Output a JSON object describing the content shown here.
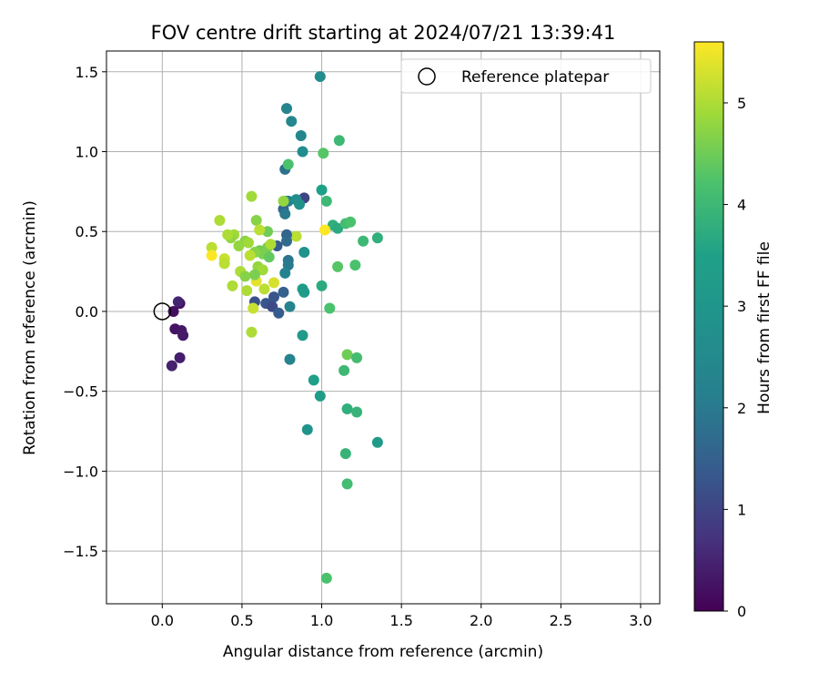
{
  "chart_data": {
    "type": "scatter",
    "title": "FOV centre drift starting at 2024/07/21 13:39:41",
    "xlabel": "Angular distance from reference (arcmin)",
    "ylabel": "Rotation from reference (arcmin)",
    "xlim": [
      -0.35,
      3.12
    ],
    "ylim": [
      -1.83,
      1.63
    ],
    "xticks": [
      0.0,
      0.5,
      1.0,
      1.5,
      2.0,
      2.5,
      3.0
    ],
    "xtick_labels": [
      "0.0",
      "0.5",
      "1.0",
      "1.5",
      "2.0",
      "2.5",
      "3.0"
    ],
    "yticks": [
      1.5,
      1.0,
      0.5,
      0.0,
      -0.5,
      -1.0,
      -1.5
    ],
    "ytick_labels": [
      "1.5",
      "1.0",
      "0.5",
      "0.0",
      "−0.5",
      "−1.0",
      "−1.5"
    ],
    "grid": true,
    "legend": {
      "position": "top-right",
      "entries": [
        "Reference platepar"
      ]
    },
    "reference_point": {
      "x": 0.0,
      "y": 0.0
    },
    "colorbar": {
      "label": "Hours from first FF file",
      "colormap": "viridis",
      "range": [
        0,
        5.6
      ],
      "ticks": [
        0,
        1,
        2,
        3,
        4,
        5
      ],
      "tick_labels": [
        "0",
        "1",
        "2",
        "3",
        "4",
        "5"
      ]
    },
    "points": [
      {
        "x": 0.11,
        "y": 0.05,
        "c": 0.15
      },
      {
        "x": 0.07,
        "y": 0.0,
        "c": 0.2
      },
      {
        "x": 0.08,
        "y": -0.11,
        "c": 0.25
      },
      {
        "x": 0.12,
        "y": -0.12,
        "c": 0.3
      },
      {
        "x": 0.13,
        "y": -0.15,
        "c": 0.35
      },
      {
        "x": 0.11,
        "y": -0.29,
        "c": 0.4
      },
      {
        "x": 0.06,
        "y": -0.34,
        "c": 0.45
      },
      {
        "x": 0.1,
        "y": 0.06,
        "c": 0.5
      },
      {
        "x": 0.99,
        "y": 1.47,
        "c": 2.6
      },
      {
        "x": 0.78,
        "y": 1.27,
        "c": 2.3
      },
      {
        "x": 0.81,
        "y": 1.19,
        "c": 2.4
      },
      {
        "x": 0.87,
        "y": 1.1,
        "c": 2.4
      },
      {
        "x": 0.88,
        "y": 1.0,
        "c": 2.6
      },
      {
        "x": 0.77,
        "y": 0.89,
        "c": 1.8
      },
      {
        "x": 0.79,
        "y": 0.92,
        "c": 4.2
      },
      {
        "x": 1.11,
        "y": 1.07,
        "c": 4.0
      },
      {
        "x": 1.01,
        "y": 0.99,
        "c": 4.3
      },
      {
        "x": 0.89,
        "y": 0.71,
        "c": 1.0
      },
      {
        "x": 0.79,
        "y": 0.69,
        "c": 2.0
      },
      {
        "x": 0.77,
        "y": 0.69,
        "c": 2.5
      },
      {
        "x": 0.84,
        "y": 0.7,
        "c": 2.6
      },
      {
        "x": 0.86,
        "y": 0.67,
        "c": 2.8
      },
      {
        "x": 0.76,
        "y": 0.64,
        "c": 1.6
      },
      {
        "x": 0.77,
        "y": 0.61,
        "c": 2.0
      },
      {
        "x": 1.0,
        "y": 0.76,
        "c": 3.5
      },
      {
        "x": 1.03,
        "y": 0.69,
        "c": 4.0
      },
      {
        "x": 0.76,
        "y": 0.69,
        "c": 4.8
      },
      {
        "x": 0.56,
        "y": 0.72,
        "c": 4.9
      },
      {
        "x": 1.07,
        "y": 0.54,
        "c": 3.8
      },
      {
        "x": 1.1,
        "y": 0.52,
        "c": 3.7
      },
      {
        "x": 1.15,
        "y": 0.55,
        "c": 4.1
      },
      {
        "x": 1.18,
        "y": 0.56,
        "c": 4.2
      },
      {
        "x": 1.02,
        "y": 0.51,
        "c": 5.6
      },
      {
        "x": 0.84,
        "y": 0.47,
        "c": 5.1
      },
      {
        "x": 0.89,
        "y": 0.37,
        "c": 2.8
      },
      {
        "x": 1.26,
        "y": 0.44,
        "c": 4.0
      },
      {
        "x": 1.35,
        "y": 0.46,
        "c": 3.8
      },
      {
        "x": 0.78,
        "y": 0.48,
        "c": 1.6
      },
      {
        "x": 0.78,
        "y": 0.44,
        "c": 1.7
      },
      {
        "x": 0.72,
        "y": 0.41,
        "c": 1.4
      },
      {
        "x": 0.79,
        "y": 0.32,
        "c": 1.9
      },
      {
        "x": 0.79,
        "y": 0.29,
        "c": 2.0
      },
      {
        "x": 0.77,
        "y": 0.24,
        "c": 2.2
      },
      {
        "x": 1.1,
        "y": 0.28,
        "c": 4.3
      },
      {
        "x": 1.21,
        "y": 0.29,
        "c": 4.2
      },
      {
        "x": 1.0,
        "y": 0.16,
        "c": 3.7
      },
      {
        "x": 0.88,
        "y": 0.14,
        "c": 3.3
      },
      {
        "x": 0.89,
        "y": 0.12,
        "c": 3.2
      },
      {
        "x": 0.76,
        "y": 0.12,
        "c": 1.5
      },
      {
        "x": 0.7,
        "y": 0.09,
        "c": 1.3
      },
      {
        "x": 0.8,
        "y": 0.03,
        "c": 2.3
      },
      {
        "x": 1.05,
        "y": 0.02,
        "c": 4.2
      },
      {
        "x": 0.58,
        "y": 0.06,
        "c": 1.2
      },
      {
        "x": 0.65,
        "y": 0.05,
        "c": 1.3
      },
      {
        "x": 0.69,
        "y": 0.03,
        "c": 1.1
      },
      {
        "x": 0.73,
        "y": -0.01,
        "c": 1.4
      },
      {
        "x": 0.57,
        "y": 0.02,
        "c": 5.2
      },
      {
        "x": 0.56,
        "y": -0.13,
        "c": 5.0
      },
      {
        "x": 0.88,
        "y": -0.15,
        "c": 3.2
      },
      {
        "x": 0.8,
        "y": -0.3,
        "c": 2.3
      },
      {
        "x": 1.16,
        "y": -0.27,
        "c": 4.5
      },
      {
        "x": 1.22,
        "y": -0.29,
        "c": 4.1
      },
      {
        "x": 1.14,
        "y": -0.37,
        "c": 4.0
      },
      {
        "x": 0.95,
        "y": -0.43,
        "c": 3.4
      },
      {
        "x": 0.99,
        "y": -0.53,
        "c": 3.3
      },
      {
        "x": 1.16,
        "y": -0.61,
        "c": 3.8
      },
      {
        "x": 1.22,
        "y": -0.63,
        "c": 3.9
      },
      {
        "x": 0.91,
        "y": -0.74,
        "c": 2.9
      },
      {
        "x": 1.35,
        "y": -0.82,
        "c": 3.2
      },
      {
        "x": 1.15,
        "y": -0.89,
        "c": 3.9
      },
      {
        "x": 1.16,
        "y": -1.08,
        "c": 4.1
      },
      {
        "x": 1.03,
        "y": -1.67,
        "c": 4.2
      },
      {
        "x": 0.36,
        "y": 0.57,
        "c": 5.0
      },
      {
        "x": 0.59,
        "y": 0.57,
        "c": 4.7
      },
      {
        "x": 0.66,
        "y": 0.5,
        "c": 4.5
      },
      {
        "x": 0.61,
        "y": 0.51,
        "c": 5.1
      },
      {
        "x": 0.45,
        "y": 0.48,
        "c": 4.9
      },
      {
        "x": 0.43,
        "y": 0.46,
        "c": 4.8
      },
      {
        "x": 0.41,
        "y": 0.48,
        "c": 5.0
      },
      {
        "x": 0.52,
        "y": 0.44,
        "c": 4.7
      },
      {
        "x": 0.54,
        "y": 0.43,
        "c": 4.9
      },
      {
        "x": 0.48,
        "y": 0.41,
        "c": 4.8
      },
      {
        "x": 0.31,
        "y": 0.4,
        "c": 5.1
      },
      {
        "x": 0.66,
        "y": 0.4,
        "c": 4.6
      },
      {
        "x": 0.68,
        "y": 0.42,
        "c": 5.0
      },
      {
        "x": 0.61,
        "y": 0.38,
        "c": 4.5
      },
      {
        "x": 0.63,
        "y": 0.36,
        "c": 4.6
      },
      {
        "x": 0.58,
        "y": 0.37,
        "c": 4.7
      },
      {
        "x": 0.55,
        "y": 0.35,
        "c": 5.1
      },
      {
        "x": 0.67,
        "y": 0.34,
        "c": 4.4
      },
      {
        "x": 0.39,
        "y": 0.33,
        "c": 5.2
      },
      {
        "x": 0.39,
        "y": 0.3,
        "c": 5.1
      },
      {
        "x": 0.31,
        "y": 0.35,
        "c": 5.6
      },
      {
        "x": 0.6,
        "y": 0.28,
        "c": 4.8
      },
      {
        "x": 0.63,
        "y": 0.26,
        "c": 4.9
      },
      {
        "x": 0.49,
        "y": 0.25,
        "c": 5.0
      },
      {
        "x": 0.52,
        "y": 0.22,
        "c": 4.7
      },
      {
        "x": 0.59,
        "y": 0.19,
        "c": 5.4
      },
      {
        "x": 0.7,
        "y": 0.18,
        "c": 5.3
      },
      {
        "x": 0.44,
        "y": 0.16,
        "c": 5.0
      },
      {
        "x": 0.53,
        "y": 0.13,
        "c": 5.0
      },
      {
        "x": 0.64,
        "y": 0.14,
        "c": 5.1
      },
      {
        "x": 0.58,
        "y": 0.23,
        "c": 4.6
      }
    ]
  }
}
